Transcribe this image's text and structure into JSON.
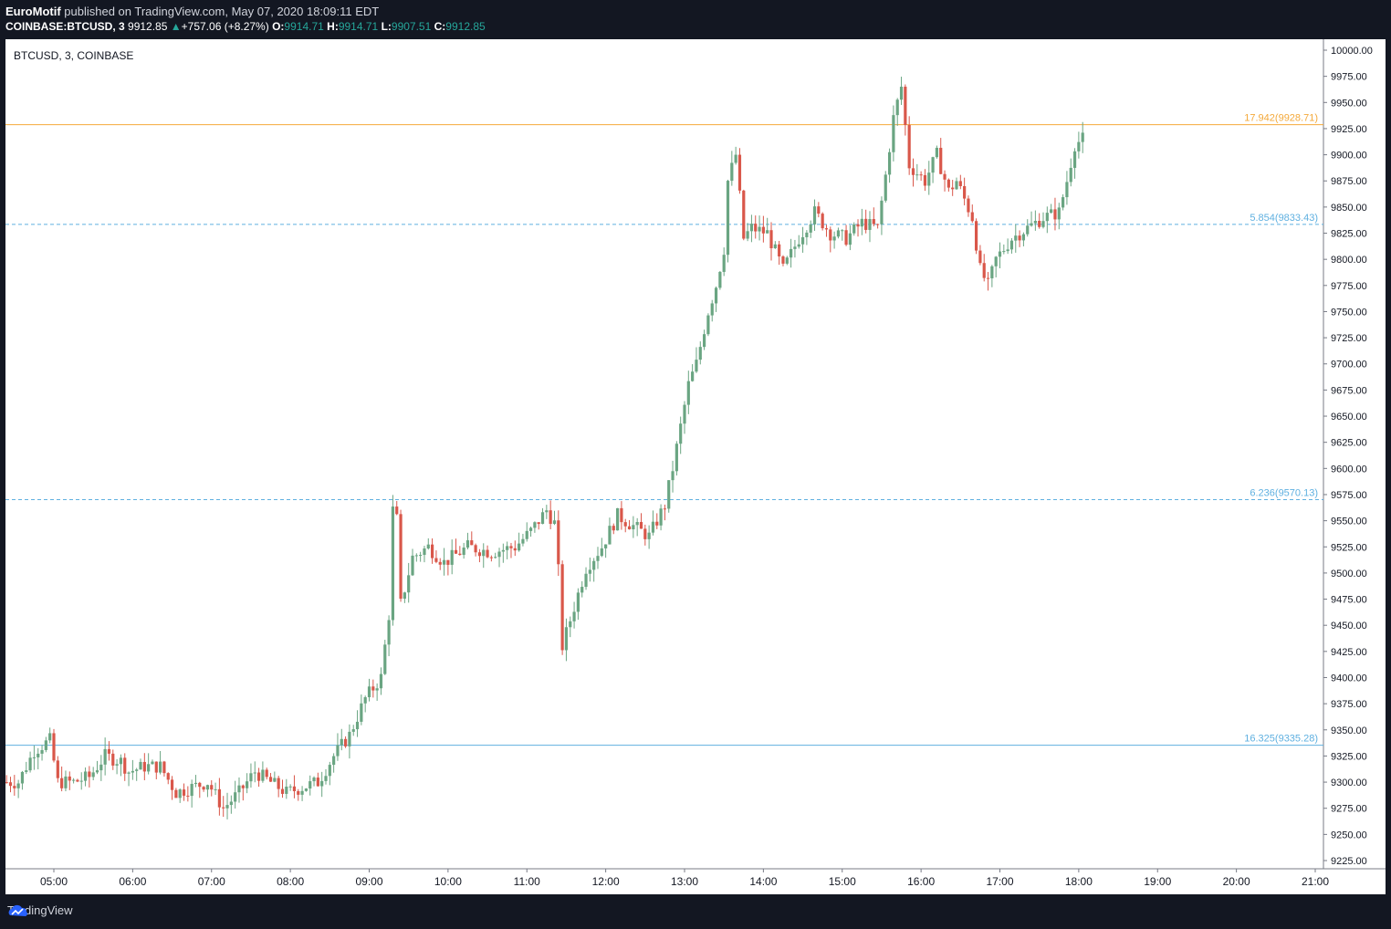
{
  "header": {
    "author": "EuroMotif",
    "published_text": " published on TradingView.com, May 07, 2020 18:09:11 EDT",
    "symbol": "COINBASE:BTCUSD, 3",
    "last": "9912.85",
    "change": "+757.06 (+8.27%)",
    "o_label": "O:",
    "o_value": "9914.71",
    "h_label": "H:",
    "h_value": "9914.71",
    "l_label": "L:",
    "l_value": "9907.51",
    "c_label": "C:",
    "c_value": "9912.85"
  },
  "chart": {
    "symbol_label": "BTCUSD, 3, COINBASE"
  },
  "footer": {
    "brand": "TradingView"
  },
  "colors": {
    "up": "#6aa582",
    "down": "#d9574a",
    "hline_gold": "#f4a93a",
    "hline_blue": "#5fb0e0"
  },
  "chart_data": {
    "type": "candlestick",
    "title": "BTCUSD, 3, COINBASE",
    "y_ticks": [
      10000,
      9975,
      9950,
      9925,
      9900,
      9875,
      9850,
      9825,
      9800,
      9775,
      9750,
      9725,
      9700,
      9675,
      9650,
      9625,
      9600,
      9575,
      9550,
      9525,
      9500,
      9475,
      9450,
      9425,
      9400,
      9375,
      9350,
      9325,
      9300,
      9275,
      9250,
      9225
    ],
    "y_tick_labels": [
      "10000.00",
      "9975.00",
      "9950.00",
      "9925.00",
      "9900.00",
      "9875.00",
      "9850.00",
      "9825.00",
      "9800.00",
      "9775.00",
      "9750.00",
      "9725.00",
      "9700.00",
      "9675.00",
      "9650.00",
      "9625.00",
      "9600.00",
      "9575.00",
      "9550.00",
      "9525.00",
      "9500.00",
      "9475.00",
      "9450.00",
      "9425.00",
      "9400.00",
      "9375.00",
      "9350.00",
      "9325.00",
      "9300.00",
      "9275.00",
      "9250.00",
      "9225.00"
    ],
    "x_ticks": [
      5,
      6,
      7,
      8,
      9,
      10,
      11,
      12,
      13,
      14,
      15,
      16,
      17,
      18,
      19,
      20,
      21
    ],
    "x_tick_labels": [
      "05:00",
      "06:00",
      "07:00",
      "08:00",
      "09:00",
      "10:00",
      "11:00",
      "12:00",
      "13:00",
      "14:00",
      "15:00",
      "16:00",
      "17:00",
      "18:00",
      "19:00",
      "20:00",
      "21:00"
    ],
    "levels": [
      {
        "price": 9928.71,
        "label": "17.942(9928.71)",
        "style": "solid",
        "color": "#f4a93a"
      },
      {
        "price": 9833.43,
        "label": "5.854(9833.43)",
        "style": "dashed",
        "color": "#5fb0e0"
      },
      {
        "price": 9570.13,
        "label": "6.236(9570.13)",
        "style": "dashed",
        "color": "#5fb0e0"
      },
      {
        "price": 9335.28,
        "label": "16.325(9335.28)",
        "style": "solid",
        "color": "#5fb0e0"
      }
    ],
    "path_points": [
      [
        4.4,
        9300
      ],
      [
        4.6,
        9300
      ],
      [
        4.8,
        9330
      ],
      [
        5.0,
        9340
      ],
      [
        5.1,
        9300
      ],
      [
        5.3,
        9300
      ],
      [
        5.5,
        9305
      ],
      [
        5.7,
        9325
      ],
      [
        5.9,
        9320
      ],
      [
        6.0,
        9310
      ],
      [
        6.2,
        9315
      ],
      [
        6.4,
        9315
      ],
      [
        6.6,
        9290
      ],
      [
        6.8,
        9295
      ],
      [
        7.0,
        9300
      ],
      [
        7.2,
        9275
      ],
      [
        7.4,
        9290
      ],
      [
        7.6,
        9310
      ],
      [
        7.8,
        9300
      ],
      [
        8.0,
        9290
      ],
      [
        8.2,
        9295
      ],
      [
        8.4,
        9300
      ],
      [
        8.6,
        9325
      ],
      [
        8.8,
        9345
      ],
      [
        9.0,
        9380
      ],
      [
        9.2,
        9400
      ],
      [
        9.3,
        9460
      ],
      [
        9.37,
        9600
      ],
      [
        9.45,
        9470
      ],
      [
        9.6,
        9515
      ],
      [
        9.8,
        9525
      ],
      [
        10.0,
        9510
      ],
      [
        10.3,
        9525
      ],
      [
        10.6,
        9520
      ],
      [
        10.9,
        9525
      ],
      [
        11.1,
        9540
      ],
      [
        11.3,
        9560
      ],
      [
        11.42,
        9545
      ],
      [
        11.5,
        9430
      ],
      [
        11.6,
        9455
      ],
      [
        11.8,
        9505
      ],
      [
        12.0,
        9525
      ],
      [
        12.2,
        9555
      ],
      [
        12.4,
        9545
      ],
      [
        12.6,
        9535
      ],
      [
        12.8,
        9565
      ],
      [
        12.9,
        9600
      ],
      [
        13.0,
        9640
      ],
      [
        13.1,
        9680
      ],
      [
        13.2,
        9700
      ],
      [
        13.35,
        9750
      ],
      [
        13.45,
        9775
      ],
      [
        13.55,
        9810
      ],
      [
        13.6,
        9875
      ],
      [
        13.7,
        9900
      ],
      [
        13.8,
        9820
      ],
      [
        13.9,
        9830
      ],
      [
        14.1,
        9825
      ],
      [
        14.3,
        9790
      ],
      [
        14.5,
        9820
      ],
      [
        14.7,
        9845
      ],
      [
        14.9,
        9825
      ],
      [
        15.1,
        9820
      ],
      [
        15.3,
        9835
      ],
      [
        15.5,
        9830
      ],
      [
        15.6,
        9880
      ],
      [
        15.7,
        9935
      ],
      [
        15.8,
        9965
      ],
      [
        15.9,
        9890
      ],
      [
        16.1,
        9875
      ],
      [
        16.25,
        9900
      ],
      [
        16.4,
        9865
      ],
      [
        16.5,
        9875
      ],
      [
        16.7,
        9840
      ],
      [
        16.8,
        9790
      ],
      [
        16.9,
        9775
      ],
      [
        17.0,
        9800
      ],
      [
        17.2,
        9820
      ],
      [
        17.4,
        9830
      ],
      [
        17.6,
        9840
      ],
      [
        17.8,
        9845
      ],
      [
        17.9,
        9875
      ],
      [
        18.0,
        9910
      ],
      [
        18.1,
        9915
      ]
    ]
  }
}
